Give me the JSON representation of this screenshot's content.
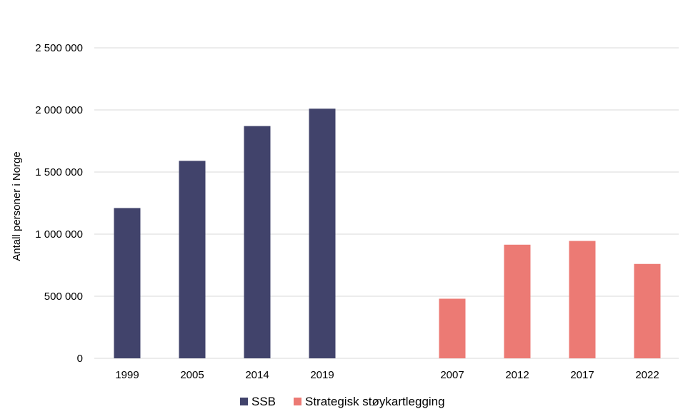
{
  "chart_data": {
    "type": "bar",
    "ylabel": "Antall personer i Norge",
    "ylim": [
      0,
      2500000
    ],
    "yticks": [
      {
        "value": 0,
        "label": "0"
      },
      {
        "value": 500000,
        "label": "500 000"
      },
      {
        "value": 1000000,
        "label": "1 000 000"
      },
      {
        "value": 1500000,
        "label": "1 500 000"
      },
      {
        "value": 2000000,
        "label": "2 000 000"
      },
      {
        "value": 2500000,
        "label": "2 500 000"
      }
    ],
    "grid": true,
    "legend_position": "bottom-center",
    "series": [
      {
        "name": "SSB",
        "color": "#41436b",
        "points": [
          {
            "x": "1999",
            "y": 1210000
          },
          {
            "x": "2005",
            "y": 1590000
          },
          {
            "x": "2014",
            "y": 1870000
          },
          {
            "x": "2019",
            "y": 2010000
          }
        ]
      },
      {
        "name": "Strategisk støykartlegging",
        "color": "#ec7a74",
        "points": [
          {
            "x": "2007",
            "y": 480000
          },
          {
            "x": "2012",
            "y": 915000
          },
          {
            "x": "2017",
            "y": 945000
          },
          {
            "x": "2022",
            "y": 760000
          }
        ]
      }
    ]
  }
}
